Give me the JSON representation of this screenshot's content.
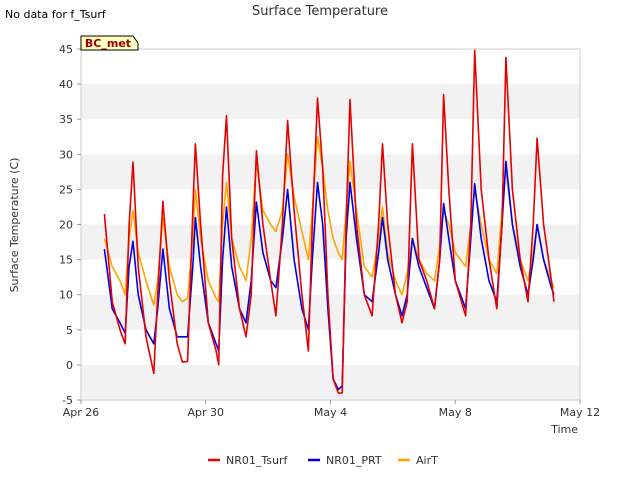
{
  "no_data_note": "No data for f_Tsurf",
  "badge": "BC_met",
  "chart_data": {
    "type": "line",
    "title": "Surface Temperature",
    "xlabel": "Time",
    "ylabel": "Surface Temperature (C)",
    "xlim": [
      "2024-04-26",
      "2024-05-12"
    ],
    "ylim": [
      -5,
      45
    ],
    "x_ticks": [
      {
        "date": "2024-04-26",
        "label": "Apr 26"
      },
      {
        "date": "2024-04-30",
        "label": "Apr 30"
      },
      {
        "date": "2024-05-04",
        "label": "May 4"
      },
      {
        "date": "2024-05-08",
        "label": "May 8"
      },
      {
        "date": "2024-05-12",
        "label": "May 12"
      }
    ],
    "y_ticks": [
      -5,
      0,
      5,
      10,
      15,
      20,
      25,
      30,
      35,
      40,
      45
    ],
    "grid": "horizontal alternating bands",
    "legend_position": "bottom",
    "series": [
      {
        "name": "NR01_Tsurf",
        "color": "#e60000",
        "points": [
          [
            "2024-04-26 18:00",
            21.5
          ],
          [
            "2024-04-27 00:00",
            9
          ],
          [
            "2024-04-27 06:00",
            5
          ],
          [
            "2024-04-27 10:00",
            3
          ],
          [
            "2024-04-27 13:00",
            20
          ],
          [
            "2024-04-27 16:00",
            28.9
          ],
          [
            "2024-04-27 20:00",
            14
          ],
          [
            "2024-04-28 02:00",
            4
          ],
          [
            "2024-04-28 08:00",
            -1.2
          ],
          [
            "2024-04-28 11:00",
            10
          ],
          [
            "2024-04-28 15:00",
            23.3
          ],
          [
            "2024-04-28 20:00",
            12
          ],
          [
            "2024-04-29 02:00",
            3
          ],
          [
            "2024-04-29 06:00",
            0.4
          ],
          [
            "2024-04-29 10:00",
            0.5
          ],
          [
            "2024-04-29 14:00",
            22
          ],
          [
            "2024-04-29 16:00",
            31.5
          ],
          [
            "2024-04-29 20:00",
            20
          ],
          [
            "2024-04-30 02:00",
            6
          ],
          [
            "2024-04-30 08:00",
            2
          ],
          [
            "2024-04-30 10:00",
            0
          ],
          [
            "2024-04-30 13:00",
            27
          ],
          [
            "2024-04-30 16:00",
            35.5
          ],
          [
            "2024-04-30 20:00",
            18
          ],
          [
            "2024-05-01 02:00",
            8
          ],
          [
            "2024-05-01 07:00",
            4
          ],
          [
            "2024-05-01 11:00",
            10
          ],
          [
            "2024-05-01 15:00",
            30.5
          ],
          [
            "2024-05-01 20:00",
            20
          ],
          [
            "2024-05-02 02:00",
            12
          ],
          [
            "2024-05-02 06:00",
            7
          ],
          [
            "2024-05-02 11:00",
            20
          ],
          [
            "2024-05-02 15:00",
            34.8
          ],
          [
            "2024-05-02 20:00",
            22
          ],
          [
            "2024-05-03 02:00",
            10
          ],
          [
            "2024-05-03 07:00",
            2
          ],
          [
            "2024-05-03 10:00",
            20
          ],
          [
            "2024-05-03 14:00",
            38
          ],
          [
            "2024-05-03 18:00",
            28
          ],
          [
            "2024-05-03 22:00",
            10
          ],
          [
            "2024-05-04 02:00",
            -2
          ],
          [
            "2024-05-04 06:00",
            -4
          ],
          [
            "2024-05-04 09:00",
            -4
          ],
          [
            "2024-05-04 12:00",
            20
          ],
          [
            "2024-05-04 15:00",
            37.8
          ],
          [
            "2024-05-04 20:00",
            20
          ],
          [
            "2024-05-05 02:00",
            10
          ],
          [
            "2024-05-05 08:00",
            7
          ],
          [
            "2024-05-05 13:00",
            20
          ],
          [
            "2024-05-05 16:00",
            31.5
          ],
          [
            "2024-05-05 20:00",
            20
          ],
          [
            "2024-05-06 02:00",
            10
          ],
          [
            "2024-05-06 07:00",
            6
          ],
          [
            "2024-05-06 11:00",
            9
          ],
          [
            "2024-05-06 15:00",
            31.5
          ],
          [
            "2024-05-06 20:00",
            15
          ],
          [
            "2024-05-07 02:00",
            12
          ],
          [
            "2024-05-07 08:00",
            8
          ],
          [
            "2024-05-07 12:00",
            15
          ],
          [
            "2024-05-07 15:00",
            38.5
          ],
          [
            "2024-05-07 19:00",
            25
          ],
          [
            "2024-05-08 00:00",
            12
          ],
          [
            "2024-05-08 08:00",
            7
          ],
          [
            "2024-05-08 12:00",
            20
          ],
          [
            "2024-05-08 15:00",
            44.8
          ],
          [
            "2024-05-08 20:00",
            25
          ],
          [
            "2024-05-09 02:00",
            15
          ],
          [
            "2024-05-09 08:00",
            8
          ],
          [
            "2024-05-09 12:00",
            20
          ],
          [
            "2024-05-09 15:00",
            43.8
          ],
          [
            "2024-05-09 20:00",
            25
          ],
          [
            "2024-05-10 02:00",
            15
          ],
          [
            "2024-05-10 08:00",
            9
          ],
          [
            "2024-05-10 12:00",
            20
          ],
          [
            "2024-05-10 15:00",
            32.3
          ],
          [
            "2024-05-10 20:00",
            20
          ],
          [
            "2024-05-11 02:00",
            12
          ],
          [
            "2024-05-11 04:00",
            9
          ]
        ]
      },
      {
        "name": "NR01_PRT",
        "color": "#0000e6",
        "points": [
          [
            "2024-04-26 18:00",
            16.5
          ],
          [
            "2024-04-27 00:00",
            8
          ],
          [
            "2024-04-27 06:00",
            6
          ],
          [
            "2024-04-27 10:00",
            4.5
          ],
          [
            "2024-04-27 13:00",
            14
          ],
          [
            "2024-04-27 16:00",
            17.6
          ],
          [
            "2024-04-27 20:00",
            10
          ],
          [
            "2024-04-28 02:00",
            5
          ],
          [
            "2024-04-28 08:00",
            3
          ],
          [
            "2024-04-28 11:00",
            8
          ],
          [
            "2024-04-28 15:00",
            16.5
          ],
          [
            "2024-04-28 20:00",
            8
          ],
          [
            "2024-04-29 02:00",
            4
          ],
          [
            "2024-04-29 06:00",
            4
          ],
          [
            "2024-04-29 10:00",
            4
          ],
          [
            "2024-04-29 14:00",
            14
          ],
          [
            "2024-04-29 16:00",
            21
          ],
          [
            "2024-04-29 20:00",
            14
          ],
          [
            "2024-04-30 02:00",
            6
          ],
          [
            "2024-04-30 08:00",
            3
          ],
          [
            "2024-04-30 10:00",
            2
          ],
          [
            "2024-04-30 13:00",
            15
          ],
          [
            "2024-04-30 16:00",
            22.5
          ],
          [
            "2024-04-30 20:00",
            14
          ],
          [
            "2024-05-01 02:00",
            8
          ],
          [
            "2024-05-01 07:00",
            6
          ],
          [
            "2024-05-01 11:00",
            12
          ],
          [
            "2024-05-01 15:00",
            23.2
          ],
          [
            "2024-05-01 20:00",
            16
          ],
          [
            "2024-05-02 02:00",
            12
          ],
          [
            "2024-05-02 06:00",
            11
          ],
          [
            "2024-05-02 11:00",
            18
          ],
          [
            "2024-05-02 15:00",
            25
          ],
          [
            "2024-05-02 20:00",
            15
          ],
          [
            "2024-05-03 02:00",
            8
          ],
          [
            "2024-05-03 07:00",
            5
          ],
          [
            "2024-05-03 10:00",
            15
          ],
          [
            "2024-05-03 14:00",
            26
          ],
          [
            "2024-05-03 18:00",
            20
          ],
          [
            "2024-05-03 22:00",
            8
          ],
          [
            "2024-05-04 02:00",
            -2
          ],
          [
            "2024-05-04 06:00",
            -3.5
          ],
          [
            "2024-05-04 09:00",
            -3
          ],
          [
            "2024-05-04 12:00",
            18
          ],
          [
            "2024-05-04 15:00",
            26
          ],
          [
            "2024-05-04 20:00",
            18
          ],
          [
            "2024-05-05 02:00",
            10
          ],
          [
            "2024-05-05 08:00",
            9
          ],
          [
            "2024-05-05 13:00",
            16
          ],
          [
            "2024-05-05 16:00",
            21
          ],
          [
            "2024-05-05 20:00",
            15
          ],
          [
            "2024-05-06 02:00",
            10
          ],
          [
            "2024-05-06 07:00",
            7
          ],
          [
            "2024-05-06 11:00",
            10
          ],
          [
            "2024-05-06 15:00",
            18
          ],
          [
            "2024-05-06 20:00",
            14
          ],
          [
            "2024-05-07 02:00",
            11
          ],
          [
            "2024-05-07 08:00",
            8
          ],
          [
            "2024-05-07 12:00",
            15
          ],
          [
            "2024-05-07 15:00",
            23
          ],
          [
            "2024-05-07 19:00",
            18
          ],
          [
            "2024-05-08 00:00",
            12
          ],
          [
            "2024-05-08 08:00",
            8
          ],
          [
            "2024-05-08 12:00",
            18
          ],
          [
            "2024-05-08 15:00",
            25.8
          ],
          [
            "2024-05-08 20:00",
            18
          ],
          [
            "2024-05-09 02:00",
            12
          ],
          [
            "2024-05-09 08:00",
            9
          ],
          [
            "2024-05-09 12:00",
            20
          ],
          [
            "2024-05-09 15:00",
            29
          ],
          [
            "2024-05-09 20:00",
            20
          ],
          [
            "2024-05-10 02:00",
            14
          ],
          [
            "2024-05-10 08:00",
            10
          ],
          [
            "2024-05-10 12:00",
            15
          ],
          [
            "2024-05-10 15:00",
            20
          ],
          [
            "2024-05-10 20:00",
            15
          ],
          [
            "2024-05-11 02:00",
            11
          ],
          [
            "2024-05-11 04:00",
            10
          ]
        ]
      },
      {
        "name": "AirT",
        "color": "#ffa500",
        "points": [
          [
            "2024-04-26 18:00",
            18
          ],
          [
            "2024-04-27 00:00",
            14
          ],
          [
            "2024-04-27 06:00",
            12
          ],
          [
            "2024-04-27 10:00",
            10
          ],
          [
            "2024-04-27 13:00",
            18
          ],
          [
            "2024-04-27 16:00",
            22
          ],
          [
            "2024-04-27 20:00",
            16
          ],
          [
            "2024-04-28 02:00",
            12
          ],
          [
            "2024-04-28 08:00",
            8.5
          ],
          [
            "2024-04-28 11:00",
            12
          ],
          [
            "2024-04-28 15:00",
            21
          ],
          [
            "2024-04-28 20:00",
            14
          ],
          [
            "2024-04-29 02:00",
            10
          ],
          [
            "2024-04-29 06:00",
            9
          ],
          [
            "2024-04-29 10:00",
            9.5
          ],
          [
            "2024-04-29 14:00",
            18
          ],
          [
            "2024-04-29 16:00",
            25
          ],
          [
            "2024-04-29 20:00",
            18
          ],
          [
            "2024-04-30 02:00",
            12
          ],
          [
            "2024-04-30 08:00",
            9.5
          ],
          [
            "2024-04-30 10:00",
            9
          ],
          [
            "2024-04-30 13:00",
            20
          ],
          [
            "2024-04-30 16:00",
            26
          ],
          [
            "2024-04-30 20:00",
            18
          ],
          [
            "2024-05-01 02:00",
            14
          ],
          [
            "2024-05-01 07:00",
            12
          ],
          [
            "2024-05-01 11:00",
            18
          ],
          [
            "2024-05-01 15:00",
            29
          ],
          [
            "2024-05-01 20:00",
            22
          ],
          [
            "2024-05-02 02:00",
            20
          ],
          [
            "2024-05-02 06:00",
            19
          ],
          [
            "2024-05-02 11:00",
            22
          ],
          [
            "2024-05-02 15:00",
            30
          ],
          [
            "2024-05-02 20:00",
            24
          ],
          [
            "2024-05-03 02:00",
            19
          ],
          [
            "2024-05-03 07:00",
            15
          ],
          [
            "2024-05-03 10:00",
            22
          ],
          [
            "2024-05-03 14:00",
            32.5
          ],
          [
            "2024-05-03 18:00",
            28
          ],
          [
            "2024-05-03 22:00",
            22
          ],
          [
            "2024-05-04 02:00",
            18
          ],
          [
            "2024-05-04 06:00",
            16
          ],
          [
            "2024-05-04 09:00",
            15
          ],
          [
            "2024-05-04 12:00",
            22
          ],
          [
            "2024-05-04 15:00",
            29
          ],
          [
            "2024-05-04 20:00",
            22
          ],
          [
            "2024-05-05 02:00",
            14
          ],
          [
            "2024-05-05 08:00",
            12.5
          ],
          [
            "2024-05-05 13:00",
            18
          ],
          [
            "2024-05-05 16:00",
            22.5
          ],
          [
            "2024-05-05 20:00",
            16
          ],
          [
            "2024-05-06 02:00",
            12
          ],
          [
            "2024-05-06 07:00",
            10
          ],
          [
            "2024-05-06 11:00",
            13
          ],
          [
            "2024-05-06 15:00",
            18
          ],
          [
            "2024-05-06 20:00",
            15
          ],
          [
            "2024-05-07 02:00",
            13
          ],
          [
            "2024-05-07 08:00",
            12
          ],
          [
            "2024-05-07 12:00",
            17
          ],
          [
            "2024-05-07 15:00",
            22
          ],
          [
            "2024-05-07 19:00",
            20
          ],
          [
            "2024-05-08 00:00",
            16
          ],
          [
            "2024-05-08 08:00",
            14
          ],
          [
            "2024-05-08 12:00",
            20
          ],
          [
            "2024-05-08 15:00",
            25
          ],
          [
            "2024-05-08 20:00",
            20
          ],
          [
            "2024-05-09 02:00",
            15
          ],
          [
            "2024-05-09 08:00",
            13
          ],
          [
            "2024-05-09 12:00",
            22
          ],
          [
            "2024-05-09 15:00",
            28
          ],
          [
            "2024-05-09 20:00",
            20
          ],
          [
            "2024-05-10 02:00",
            15
          ],
          [
            "2024-05-10 08:00",
            12
          ],
          [
            "2024-05-10 12:00",
            16
          ],
          [
            "2024-05-10 15:00",
            20
          ],
          [
            "2024-05-10 20:00",
            15
          ],
          [
            "2024-05-11 02:00",
            12
          ],
          [
            "2024-05-11 04:00",
            11
          ]
        ]
      }
    ]
  }
}
